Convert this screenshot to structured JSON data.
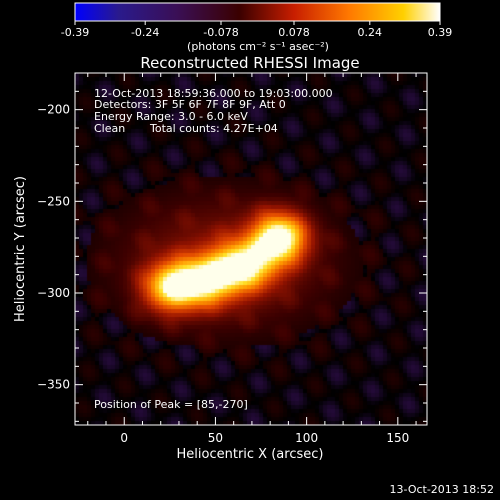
{
  "footer_timestamp": "13-Oct-2013 18:52",
  "colorbar": {
    "ticks": [
      "-0.39",
      "-0.24",
      "-0.078",
      "0.078",
      "0.24",
      "0.39"
    ],
    "unit_label": "(photons cm⁻² s⁻¹ asec⁻²)",
    "range": [
      -0.39,
      0.39
    ]
  },
  "chart_data": {
    "type": "heatmap",
    "title": "Reconstructed RHESSI Image",
    "xlabel": "Heliocentric X (arcsec)",
    "ylabel": "Heliocentric Y (arcsec)",
    "xlim": [
      -27,
      166
    ],
    "ylim": [
      -372,
      -180
    ],
    "xticks": [
      0,
      50,
      100,
      150
    ],
    "yticks": [
      -200,
      -250,
      -300,
      -350
    ],
    "annotations": {
      "time_range": "12-Oct-2013 18:59:36.000 to 19:03:00.000",
      "detectors": "Detectors: 3F 5F 6F 7F 8F 9F, Att 0",
      "energy_range": "Energy Range: 3.0 - 6.0 keV",
      "method": "Clean",
      "total_counts": "Total counts: 4.27E+04",
      "peak_position": "Position of Peak = [85,-270]"
    },
    "source_components": [
      {
        "x": 85,
        "y": -270,
        "amplitude": 1.0,
        "sigma_x": 10,
        "sigma_y": 9
      },
      {
        "x": 65,
        "y": -285,
        "amplitude": 0.85,
        "sigma_x": 12,
        "sigma_y": 9
      },
      {
        "x": 43,
        "y": -294,
        "amplitude": 0.8,
        "sigma_x": 12,
        "sigma_y": 9
      },
      {
        "x": 25,
        "y": -297,
        "amplitude": 0.7,
        "sigma_x": 10,
        "sigma_y": 9
      }
    ],
    "halo": {
      "x": 55,
      "y": -283,
      "amplitude": 0.25,
      "sigma_x": 45,
      "sigma_y": 28
    },
    "peak": [
      85,
      -270
    ]
  }
}
